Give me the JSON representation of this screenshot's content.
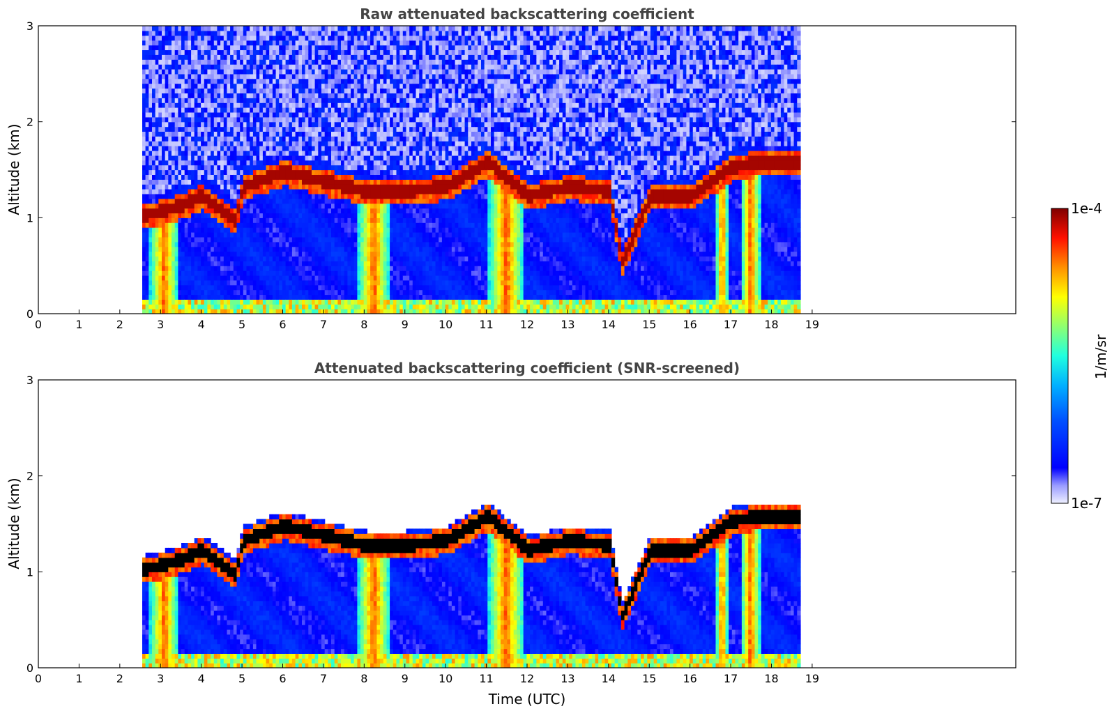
{
  "colors": {
    "colormap_jet": [
      "#00007f",
      "#0000ff",
      "#007fff",
      "#00ffff",
      "#7fff7f",
      "#ffff00",
      "#ff7f00",
      "#ff0000",
      "#7f0000"
    ],
    "low_end": [
      "#e6e6fa",
      "#9999ff",
      "#0000ff"
    ],
    "saturated_screened": "#000000",
    "title_text": "#444444",
    "background": "#ffffff"
  },
  "figure": {
    "xlabel": "Time (UTC)",
    "colorbar": {
      "label": "1/m/sr",
      "max_label": "1e-4",
      "min_label": "1e-7",
      "scale": "log",
      "range": [
        1e-07,
        0.0001
      ]
    }
  },
  "chart_data": [
    {
      "type": "heatmap",
      "title": "Raw attenuated backscattering coefficient",
      "xlabel": "",
      "ylabel": "Altitude (km)",
      "xlim": [
        0,
        24
      ],
      "ylim": [
        0,
        3
      ],
      "x_ticks": [
        0,
        1,
        2,
        3,
        4,
        5,
        6,
        7,
        8,
        9,
        10,
        11,
        12,
        13,
        14,
        15,
        16,
        17,
        18,
        19
      ],
      "y_ticks": [
        0,
        1,
        2,
        3
      ],
      "data_time_range": [
        2.55,
        18.65
      ],
      "cloud_base_km": [
        [
          2.6,
          1.0
        ],
        [
          3.5,
          1.1
        ],
        [
          4.0,
          1.2
        ],
        [
          4.8,
          0.95
        ],
        [
          5.0,
          1.3
        ],
        [
          6.0,
          1.45
        ],
        [
          7.0,
          1.35
        ],
        [
          8.0,
          1.25
        ],
        [
          9.0,
          1.25
        ],
        [
          10.0,
          1.3
        ],
        [
          11.0,
          1.55
        ],
        [
          12.0,
          1.2
        ],
        [
          13.0,
          1.3
        ],
        [
          14.0,
          1.25
        ],
        [
          14.3,
          0.5
        ],
        [
          15.0,
          1.2
        ],
        [
          16.0,
          1.2
        ],
        [
          17.0,
          1.5
        ],
        [
          17.7,
          1.55
        ]
      ],
      "layer_color": "dark red"
    },
    {
      "type": "heatmap",
      "title": "Attenuated backscattering coefficient (SNR-screened)",
      "xlabel": "Time (UTC)",
      "ylabel": "Altitude (km)",
      "xlim": [
        0,
        24
      ],
      "ylim": [
        0,
        3
      ],
      "x_ticks": [
        0,
        1,
        2,
        3,
        4,
        5,
        6,
        7,
        8,
        9,
        10,
        11,
        12,
        13,
        14,
        15,
        16,
        17,
        18,
        19
      ],
      "y_ticks": [
        0,
        1,
        2,
        3
      ],
      "data_time_range": [
        2.55,
        18.65
      ],
      "cloud_base_km": [
        [
          2.6,
          1.0
        ],
        [
          3.5,
          1.1
        ],
        [
          4.0,
          1.2
        ],
        [
          4.8,
          0.95
        ],
        [
          5.0,
          1.3
        ],
        [
          6.0,
          1.45
        ],
        [
          7.0,
          1.35
        ],
        [
          8.0,
          1.25
        ],
        [
          9.0,
          1.25
        ],
        [
          10.0,
          1.3
        ],
        [
          11.0,
          1.55
        ],
        [
          12.0,
          1.2
        ],
        [
          13.0,
          1.3
        ],
        [
          14.0,
          1.25
        ],
        [
          14.3,
          0.5
        ],
        [
          15.0,
          1.2
        ],
        [
          16.0,
          1.2
        ],
        [
          17.0,
          1.5
        ],
        [
          17.7,
          1.55
        ]
      ],
      "layer_color": "black"
    }
  ]
}
